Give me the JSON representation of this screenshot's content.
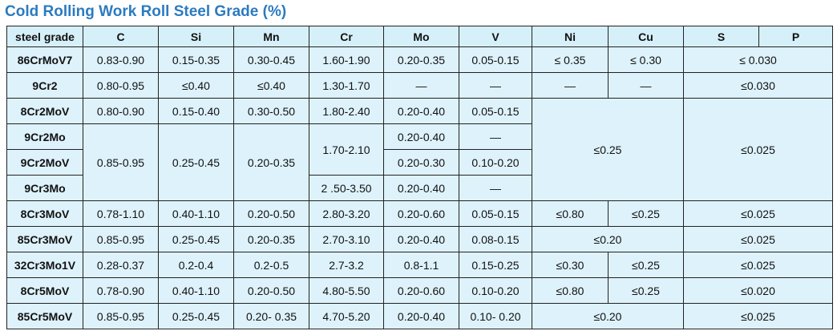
{
  "title": "Cold Rolling Work Roll Steel Grade (%)",
  "table": {
    "header": [
      "steel grade",
      "C",
      "Si",
      "Mn",
      "Cr",
      "Mo",
      "V",
      "Ni",
      "Cu",
      "S",
      "P"
    ],
    "rows": [
      [
        "86CrMoV7",
        "0.83-0.90",
        "0.15-0.35",
        "0.30-0.45",
        "1.60-1.90",
        "0.20-0.35",
        "0.05-0.15",
        "≤ 0.35",
        "≤ 0.30",
        "≤ 0.030"
      ],
      [
        "9Cr2",
        "0.80-0.95",
        "≤0.40",
        "≤0.40",
        "1.30-1.70",
        "—",
        "—",
        "—",
        "—",
        "≤0.030"
      ],
      [
        "8Cr2MoV",
        "0.80-0.90",
        "0.15-0.40",
        "0.30-0.50",
        "1.80-2.40",
        "0.20-0.40",
        "0.05-0.15",
        "≤0.25",
        "≤0.025"
      ],
      [
        "9Cr2Mo",
        "0.85-0.95",
        "0.25-0.45",
        "0.20-0.35",
        "1.70-2.10",
        "0.20-0.40",
        "—"
      ],
      [
        "9Cr2MoV",
        "0.20-0.30",
        "0.10-0.20"
      ],
      [
        "9Cr3Mo",
        "2 .50-3.50",
        "0.20-0.40",
        "—"
      ],
      [
        "8Cr3MoV",
        "0.78-1.10",
        "0.40-1.10",
        "0.20-0.50",
        "2.80-3.20",
        "0.20-0.60",
        "0.05-0.15",
        "≤0.80",
        "≤0.25",
        "≤0.025"
      ],
      [
        "85Cr3MoV",
        "0.85-0.95",
        "0.25-0.45",
        "0.20-0.35",
        "2.70-3.10",
        "0.20-0.40",
        "0.08-0.15",
        "≤0.20",
        "≤0.025"
      ],
      [
        "32Cr3Mo1V",
        "0.28-0.37",
        "0.2-0.4",
        "0.2-0.5",
        "2.7-3.2",
        "0.8-1.1",
        "0.15-0.25",
        "≤0.30",
        "≤0.25",
        "≤0.025"
      ],
      [
        "8Cr5MoV",
        "0.78-0.90",
        "0.40-1.10",
        "0.20-0.50",
        "4.80-5.50",
        "0.20-0.60",
        "0.10-0.20",
        "≤0.80",
        "≤0.25",
        "≤0.020"
      ],
      [
        "85Cr5MoV",
        "0.85-0.95",
        "0.25-0.45",
        "0.20- 0.35",
        "4.70-5.20",
        "0.20-0.40",
        "0.10- 0.20",
        "≤0.20",
        "≤0.025"
      ]
    ]
  }
}
